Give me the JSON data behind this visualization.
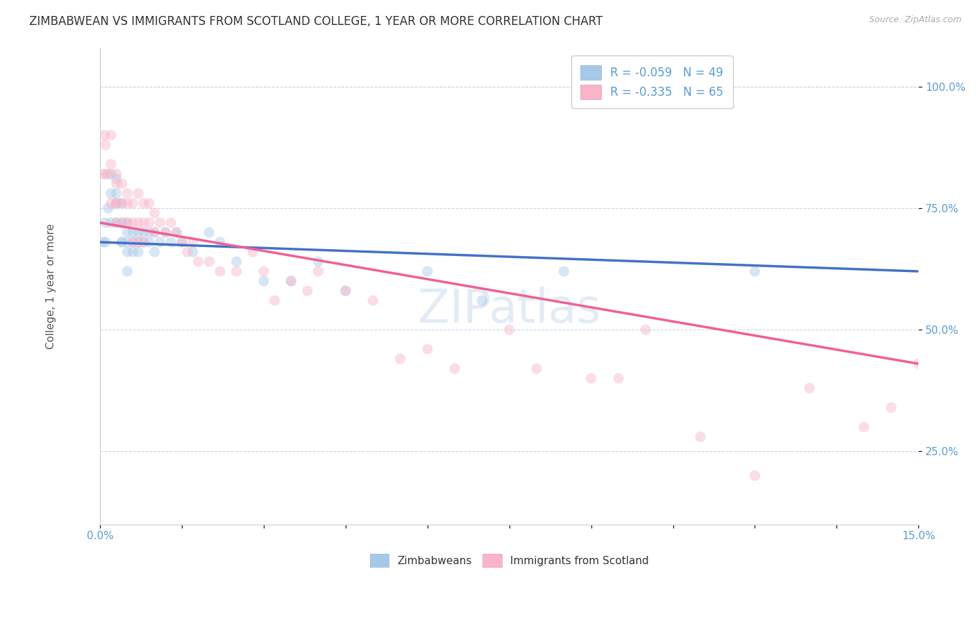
{
  "title": "ZIMBABWEAN VS IMMIGRANTS FROM SCOTLAND COLLEGE, 1 YEAR OR MORE CORRELATION CHART",
  "source_text": "Source: ZipAtlas.com",
  "xlabel": "",
  "ylabel": "College, 1 year or more",
  "xlim": [
    0.0,
    0.15
  ],
  "ylim": [
    0.1,
    1.08
  ],
  "xticks": [
    0.0,
    0.015,
    0.03,
    0.045,
    0.06,
    0.075,
    0.09,
    0.105,
    0.12,
    0.135,
    0.15
  ],
  "xticklabels": [
    "0.0%",
    "",
    "",
    "",
    "",
    "",
    "",
    "",
    "",
    "",
    "15.0%"
  ],
  "yticks": [
    0.25,
    0.5,
    0.75,
    1.0
  ],
  "yticklabels": [
    "25.0%",
    "50.0%",
    "75.0%",
    "100.0%"
  ],
  "blue_scatter_color": "#a8c8e8",
  "pink_scatter_color": "#f8b4c8",
  "blue_line_color": "#4472c4",
  "pink_line_color": "#f06090",
  "background_color": "#ffffff",
  "grid_color": "#c8d8ea",
  "title_color": "#333333",
  "axis_tick_color": "#5b9bd5",
  "source_color": "#aaaaaa",
  "zimbabwean_x": [
    0.0005,
    0.001,
    0.001,
    0.0015,
    0.002,
    0.002,
    0.002,
    0.003,
    0.003,
    0.003,
    0.003,
    0.004,
    0.004,
    0.004,
    0.004,
    0.005,
    0.005,
    0.005,
    0.005,
    0.005,
    0.006,
    0.006,
    0.006,
    0.007,
    0.007,
    0.007,
    0.008,
    0.008,
    0.009,
    0.009,
    0.01,
    0.01,
    0.011,
    0.012,
    0.013,
    0.014,
    0.015,
    0.017,
    0.02,
    0.022,
    0.025,
    0.03,
    0.035,
    0.04,
    0.045,
    0.06,
    0.07,
    0.085,
    0.12
  ],
  "zimbabwean_y": [
    0.68,
    0.72,
    0.68,
    0.75,
    0.78,
    0.72,
    0.82,
    0.72,
    0.78,
    0.81,
    0.76,
    0.72,
    0.68,
    0.76,
    0.68,
    0.7,
    0.72,
    0.68,
    0.66,
    0.62,
    0.7,
    0.68,
    0.66,
    0.7,
    0.68,
    0.66,
    0.7,
    0.68,
    0.7,
    0.68,
    0.7,
    0.66,
    0.68,
    0.7,
    0.68,
    0.7,
    0.68,
    0.66,
    0.7,
    0.68,
    0.64,
    0.6,
    0.6,
    0.64,
    0.58,
    0.62,
    0.56,
    0.62,
    0.62
  ],
  "scotland_x": [
    0.0005,
    0.0008,
    0.001,
    0.001,
    0.0015,
    0.002,
    0.002,
    0.002,
    0.003,
    0.003,
    0.003,
    0.003,
    0.003,
    0.004,
    0.004,
    0.004,
    0.005,
    0.005,
    0.005,
    0.006,
    0.006,
    0.006,
    0.007,
    0.007,
    0.007,
    0.008,
    0.008,
    0.008,
    0.009,
    0.009,
    0.01,
    0.01,
    0.011,
    0.012,
    0.013,
    0.014,
    0.015,
    0.016,
    0.017,
    0.018,
    0.02,
    0.022,
    0.025,
    0.028,
    0.03,
    0.032,
    0.035,
    0.038,
    0.04,
    0.045,
    0.05,
    0.055,
    0.06,
    0.065,
    0.075,
    0.08,
    0.09,
    0.095,
    0.1,
    0.11,
    0.12,
    0.13,
    0.14,
    0.145,
    0.15
  ],
  "scotland_y": [
    0.82,
    0.9,
    0.82,
    0.88,
    0.82,
    0.84,
    0.76,
    0.9,
    0.8,
    0.76,
    0.82,
    0.76,
    0.72,
    0.8,
    0.76,
    0.72,
    0.78,
    0.72,
    0.76,
    0.76,
    0.72,
    0.68,
    0.78,
    0.72,
    0.68,
    0.76,
    0.72,
    0.68,
    0.76,
    0.72,
    0.74,
    0.7,
    0.72,
    0.7,
    0.72,
    0.7,
    0.68,
    0.66,
    0.68,
    0.64,
    0.64,
    0.62,
    0.62,
    0.66,
    0.62,
    0.56,
    0.6,
    0.58,
    0.62,
    0.58,
    0.56,
    0.44,
    0.46,
    0.42,
    0.5,
    0.42,
    0.4,
    0.4,
    0.5,
    0.28,
    0.2,
    0.38,
    0.3,
    0.34,
    0.43
  ],
  "blue_trend_x": [
    0.0,
    0.15
  ],
  "blue_trend_y": [
    0.68,
    0.62
  ],
  "pink_trend_x": [
    0.0,
    0.15
  ],
  "pink_trend_y": [
    0.72,
    0.43
  ],
  "marker_size": 120,
  "marker_alpha": 0.45,
  "title_fontsize": 12,
  "label_fontsize": 11,
  "tick_fontsize": 11
}
